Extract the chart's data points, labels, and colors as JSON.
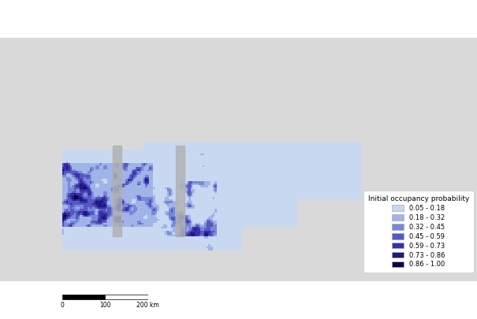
{
  "legend_title": "Initial occupancy probability",
  "legend_labels": [
    "0.05 - 0.18",
    "0.18 - 0.32",
    "0.32 - 0.45",
    "0.45 - 0.59",
    "0.59 - 0.73",
    "0.73 - 0.86",
    "0.86 - 1.00"
  ],
  "legend_colors": [
    "#c8d8f0",
    "#a0b4e8",
    "#7888d8",
    "#5558c0",
    "#3830a8",
    "#1e1880",
    "#0a0050"
  ],
  "land_color": "#d9d9d9",
  "water_color": "#ffffff",
  "border_color": "#999999",
  "border_linewidth": 0.4,
  "figsize": [
    6.05,
    4.05
  ],
  "dpi": 100,
  "map_extent_lon": [
    -103,
    -50
  ],
  "map_extent_lat": [
    41,
    68
  ],
  "study_base_color": "#c8d8f0",
  "gray_nodata_color": "#b0b0b0"
}
